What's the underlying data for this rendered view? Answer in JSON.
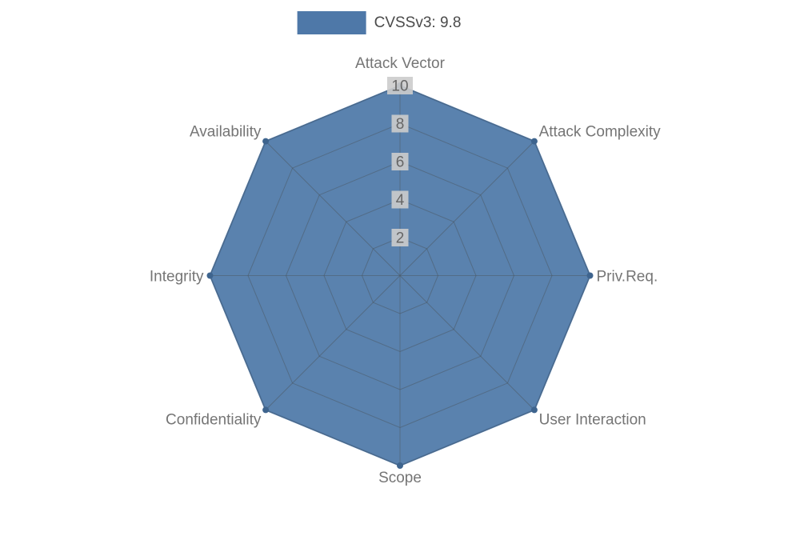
{
  "legend": {
    "label": "CVSSv3: 9.8"
  },
  "colors": {
    "series": "#4e78a8",
    "series_dot": "#3e648e",
    "grid": "#4a5560",
    "grid_opacity": 0.5,
    "fill_opacity": 0.93,
    "tick_bg": "#cccccc",
    "tick_bg_opacity": 0.9,
    "tick_text": "#666666",
    "axis_label": "#757575",
    "legend_text": "#4a4a4a"
  },
  "chart_data": {
    "type": "radar",
    "title": "",
    "categories": [
      "Attack Vector",
      "Attack Complexity",
      "Priv.Req.",
      "User Interaction",
      "Scope",
      "Confidentiality",
      "Integrity",
      "Availability"
    ],
    "series": [
      {
        "name": "CVSSv3: 9.8",
        "values": [
          10,
          10,
          10,
          10,
          10,
          10,
          10,
          10
        ]
      }
    ],
    "max": 10,
    "ticks": [
      2,
      4,
      6,
      8,
      10
    ],
    "grid": true,
    "legend_position": "top"
  }
}
